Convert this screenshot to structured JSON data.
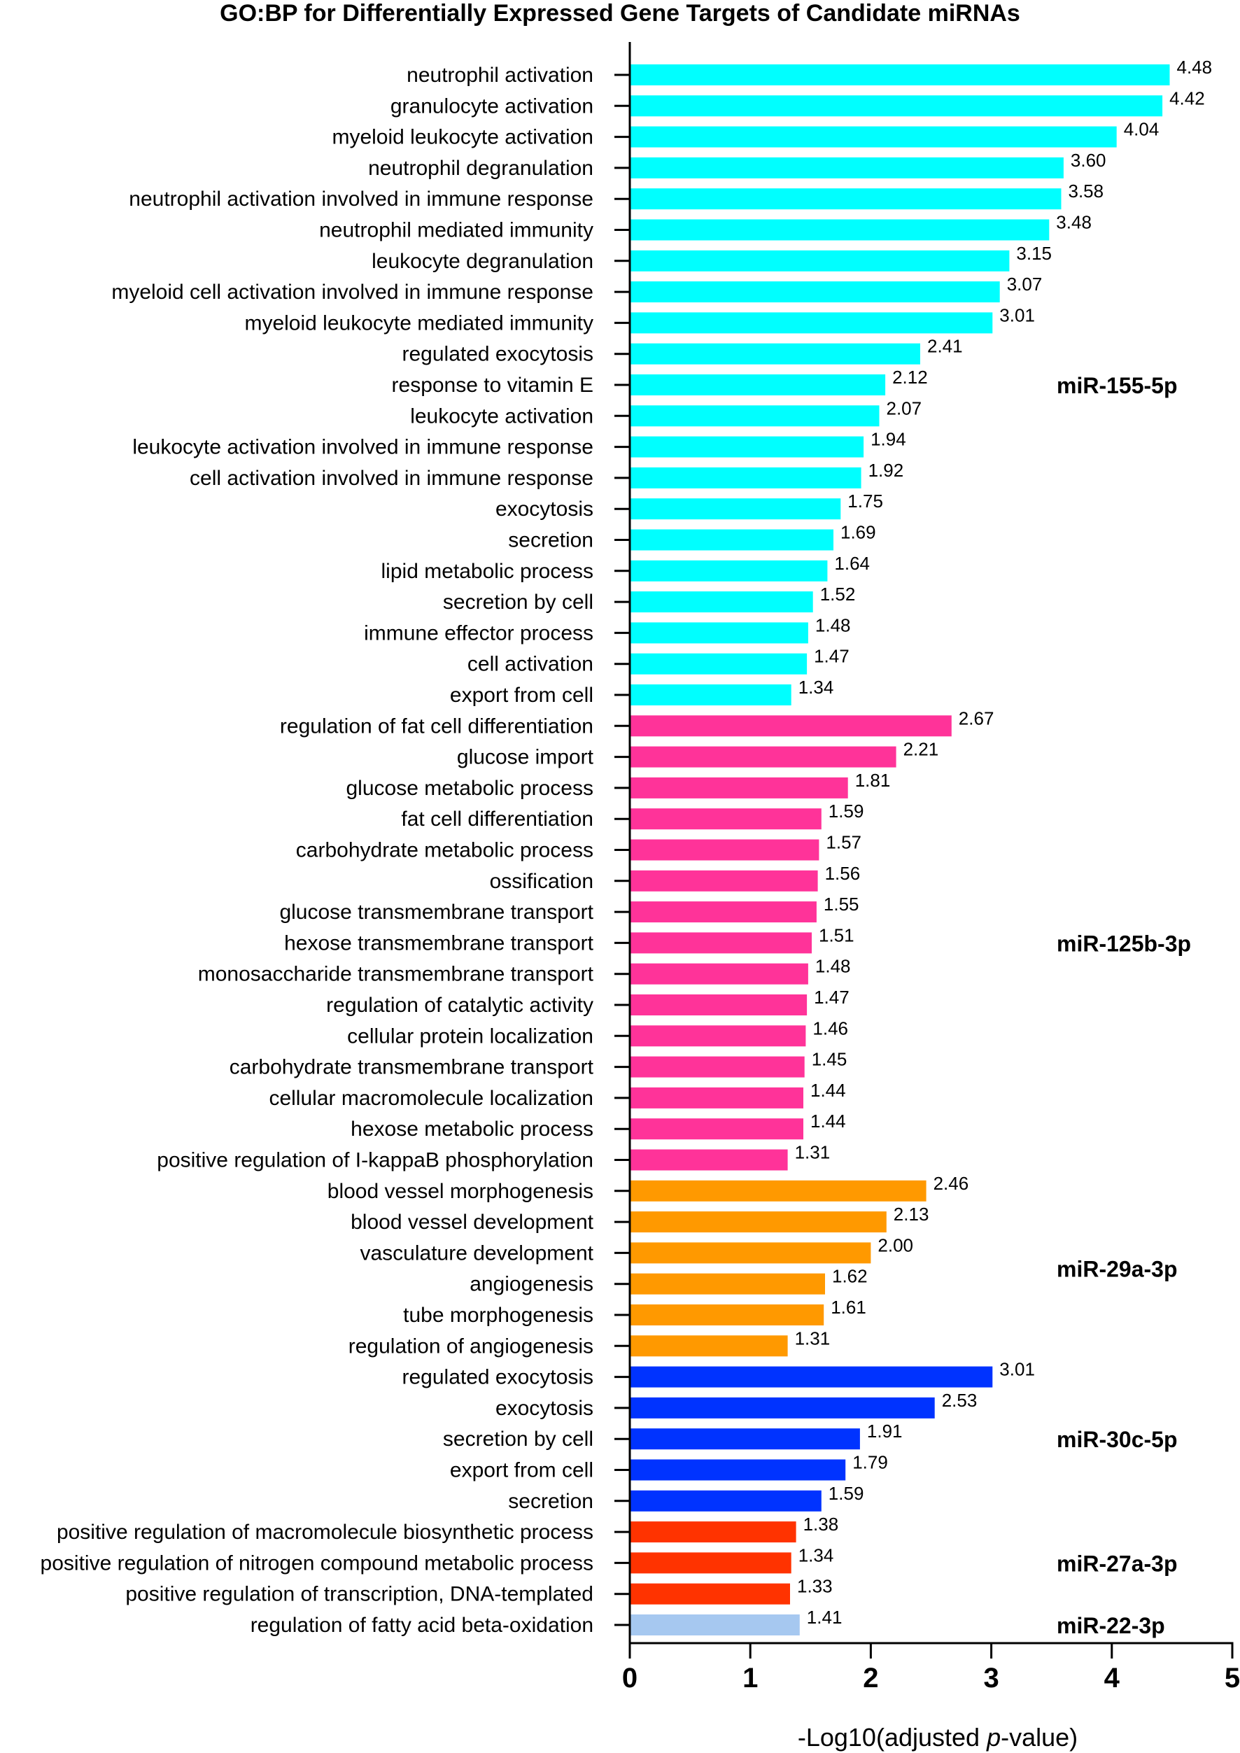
{
  "chart_data": {
    "type": "bar",
    "orientation": "horizontal",
    "title": "GO:BP for Differentially Expressed Gene Targets of Candidate miRNAs",
    "xlabel": "-Log10(adjusted p-value)",
    "xlabel_prefix": "-Log10(adjusted ",
    "xlabel_italic": "p",
    "xlabel_suffix": "-value)",
    "ylabel": "",
    "xlim": [
      0,
      5
    ],
    "xticks": [
      "0",
      "1",
      "2",
      "3",
      "4",
      "5"
    ],
    "grid": false,
    "groups": [
      {
        "name": "miR-155-5p",
        "color": "#00FFFF",
        "categories": [
          "neutrophil activation",
          "granulocyte activation",
          "myeloid leukocyte activation",
          "neutrophil degranulation",
          "neutrophil activation involved in immune response",
          "neutrophil mediated immunity",
          "leukocyte degranulation",
          "myeloid cell activation involved in immune response",
          "myeloid leukocyte mediated immunity",
          "regulated exocytosis",
          "response to vitamin E",
          "leukocyte activation",
          "leukocyte activation involved in immune response",
          "cell activation involved in immune response",
          "exocytosis",
          "secretion",
          "lipid metabolic process",
          "secretion by cell",
          "immune effector process",
          "cell activation",
          "export from cell"
        ],
        "values": [
          4.48,
          4.42,
          4.04,
          3.6,
          3.58,
          3.48,
          3.15,
          3.07,
          3.01,
          2.41,
          2.12,
          2.07,
          1.94,
          1.92,
          1.75,
          1.69,
          1.64,
          1.52,
          1.48,
          1.47,
          1.34
        ],
        "value_labels": [
          "4.48",
          "4.42",
          "4.04",
          "3.60",
          "3.58",
          "3.48",
          "3.15",
          "3.07",
          "3.01",
          "2.41",
          "2.12",
          "2.07",
          "1.94",
          "1.92",
          "1.75",
          "1.69",
          "1.64",
          "1.52",
          "1.48",
          "1.47",
          "1.34"
        ]
      },
      {
        "name": "miR-125b-3p",
        "color": "#FF3399",
        "categories": [
          "regulation of fat cell differentiation",
          "glucose import",
          "glucose metabolic process",
          "fat cell differentiation",
          "carbohydrate metabolic process",
          "ossification",
          "glucose transmembrane transport",
          "hexose transmembrane transport",
          "monosaccharide transmembrane transport",
          "regulation of catalytic activity",
          "cellular protein localization",
          "carbohydrate transmembrane transport",
          "cellular macromolecule localization",
          "hexose metabolic process",
          "positive regulation of I-kappaB phosphorylation"
        ],
        "values": [
          2.67,
          2.21,
          1.81,
          1.59,
          1.57,
          1.56,
          1.55,
          1.51,
          1.48,
          1.47,
          1.46,
          1.45,
          1.44,
          1.44,
          1.31
        ],
        "value_labels": [
          "2.67",
          "2.21",
          "1.81",
          "1.59",
          "1.57",
          "1.56",
          "1.55",
          "1.51",
          "1.48",
          "1.47",
          "1.46",
          "1.45",
          "1.44",
          "1.44",
          "1.31"
        ]
      },
      {
        "name": "miR-29a-3p",
        "color": "#FF9900",
        "categories": [
          "blood vessel morphogenesis",
          "blood vessel development",
          "vasculature development",
          "angiogenesis",
          "tube morphogenesis",
          "regulation of angiogenesis"
        ],
        "values": [
          2.46,
          2.13,
          2.0,
          1.62,
          1.61,
          1.31
        ],
        "value_labels": [
          "2.46",
          "2.13",
          "2.00",
          "1.62",
          "1.61",
          "1.31"
        ]
      },
      {
        "name": "miR-30c-5p",
        "color": "#0033FF",
        "categories": [
          "regulated exocytosis",
          "exocytosis",
          "secretion by cell",
          "export from cell",
          "secretion"
        ],
        "values": [
          3.01,
          2.53,
          1.91,
          1.79,
          1.59
        ],
        "value_labels": [
          "3.01",
          "2.53",
          "1.91",
          "1.79",
          "1.59"
        ]
      },
      {
        "name": "miR-27a-3p",
        "color": "#FF3300",
        "categories": [
          "positive regulation of macromolecule biosynthetic process",
          "positive regulation of nitrogen compound metabolic process",
          "positive regulation of transcription, DNA-templated"
        ],
        "values": [
          1.38,
          1.34,
          1.33
        ],
        "value_labels": [
          "1.38",
          "1.34",
          "1.33"
        ]
      },
      {
        "name": "miR-22-3p",
        "color": "#A6C8F0",
        "categories": [
          "regulation of fatty acid beta-oxidation"
        ],
        "values": [
          1.41
        ],
        "value_labels": [
          "1.41"
        ]
      }
    ]
  }
}
